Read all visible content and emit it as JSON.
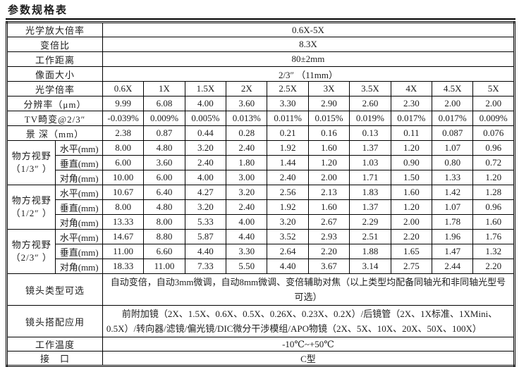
{
  "title": "参数规格表",
  "colors": {
    "border": "#000000",
    "text": "#1d1d1d",
    "background": "#ffffff"
  },
  "table": {
    "top_rows": [
      {
        "label": "光学放大倍率",
        "value": "0.6X-5X"
      },
      {
        "label": "变倍比",
        "value": "8.3X"
      },
      {
        "label": "工作距离",
        "value": "80±2mm"
      },
      {
        "label": "像面大小",
        "value": "2/3″ （11mm）"
      }
    ],
    "header": {
      "label": "光学倍率",
      "columns": [
        "0.6X",
        "1X",
        "1.5X",
        "2X",
        "2.5X",
        "3X",
        "3.5X",
        "4X",
        "4.5X",
        "5X"
      ]
    },
    "metric_rows": [
      {
        "label": "分辨率（μm）",
        "values": [
          "9.99",
          "6.08",
          "4.00",
          "3.60",
          "3.30",
          "2.90",
          "2.60",
          "2.30",
          "2.00",
          "2.00"
        ]
      },
      {
        "label": "TV畸变@2/3″",
        "values": [
          "-0.039%",
          "0.009%",
          "0.005%",
          "0.013%",
          "0.011%",
          "0.015%",
          "0.019%",
          "0.017%",
          "0.017%",
          "0.009%"
        ]
      },
      {
        "label": "景 深（mm）",
        "values": [
          "2.38",
          "0.87",
          "0.44",
          "0.28",
          "0.21",
          "0.16",
          "0.13",
          "0.11",
          "0.087",
          "0.076"
        ]
      }
    ],
    "fov_groups": [
      {
        "label": "物方视野",
        "sublabel": "（1/3″ ）",
        "rows": [
          {
            "label": "水平(mm)",
            "values": [
              "8.00",
              "4.80",
              "3.20",
              "2.40",
              "1.92",
              "1.60",
              "1.37",
              "1.20",
              "1.07",
              "0.96"
            ]
          },
          {
            "label": "垂直(mm)",
            "values": [
              "6.00",
              "3.60",
              "2.40",
              "1.80",
              "1.44",
              "1.20",
              "1.03",
              "0.90",
              "0.80",
              "0.72"
            ]
          },
          {
            "label": "对角(mm)",
            "values": [
              "10.00",
              "6.00",
              "4.00",
              "3.00",
              "2.40",
              "2.00",
              "1.71",
              "1.50",
              "1.33",
              "1.20"
            ]
          }
        ]
      },
      {
        "label": "物方视野",
        "sublabel": "（1/2″ ）",
        "rows": [
          {
            "label": "水平(mm)",
            "values": [
              "10.67",
              "6.40",
              "4.27",
              "3.20",
              "2.56",
              "2.13",
              "1.83",
              "1.60",
              "1.42",
              "1.28"
            ]
          },
          {
            "label": "垂直(mm)",
            "values": [
              "8.00",
              "4.80",
              "3.20",
              "2.40",
              "1.92",
              "1.60",
              "1.37",
              "1.20",
              "1.07",
              "0.96"
            ]
          },
          {
            "label": "对角(mm)",
            "values": [
              "13.33",
              "8.00",
              "5.33",
              "4.00",
              "3.20",
              "2.67",
              "2.29",
              "2.00",
              "1.78",
              "1.60"
            ]
          }
        ]
      },
      {
        "label": "物方视野",
        "sublabel": "（2/3″ ）",
        "rows": [
          {
            "label": "水平(mm)",
            "values": [
              "14.67",
              "8.80",
              "5.87",
              "4.40",
              "3.52",
              "2.93",
              "2.51",
              "2.20",
              "1.96",
              "1.76"
            ]
          },
          {
            "label": "垂直(mm)",
            "values": [
              "11.00",
              "6.60",
              "4.40",
              "3.30",
              "2.64",
              "2.20",
              "1.88",
              "1.65",
              "1.47",
              "1.32"
            ]
          },
          {
            "label": "对角(mm)",
            "values": [
              "18.33",
              "11.00",
              "7.33",
              "5.50",
              "4.40",
              "3.67",
              "3.14",
              "2.75",
              "2.44",
              "2.20"
            ]
          }
        ]
      }
    ],
    "bottom_rows": [
      {
        "label": "镜头类型可选",
        "value": "自动变倍，自动3mm微调，自动8mm微调、变倍辅助对焦（以上类型均配备同轴光和非同轴光型号可选）"
      },
      {
        "label": "镜头搭配应用",
        "value": "前附加镜（2X、1.5X、0.6X、0.5X、0.26X、0.23X、0.2X）/后镜管（2X、1X标准、1XMini、0.5X）/转向器/滤镜/偏光镜/DIC微分干涉模组/APO物镜（2X、5X、10X、20X、50X、100X）"
      },
      {
        "label": "工作温度",
        "value": "-10℃~+50℃"
      },
      {
        "label": "接　口",
        "value": "C型"
      }
    ]
  }
}
